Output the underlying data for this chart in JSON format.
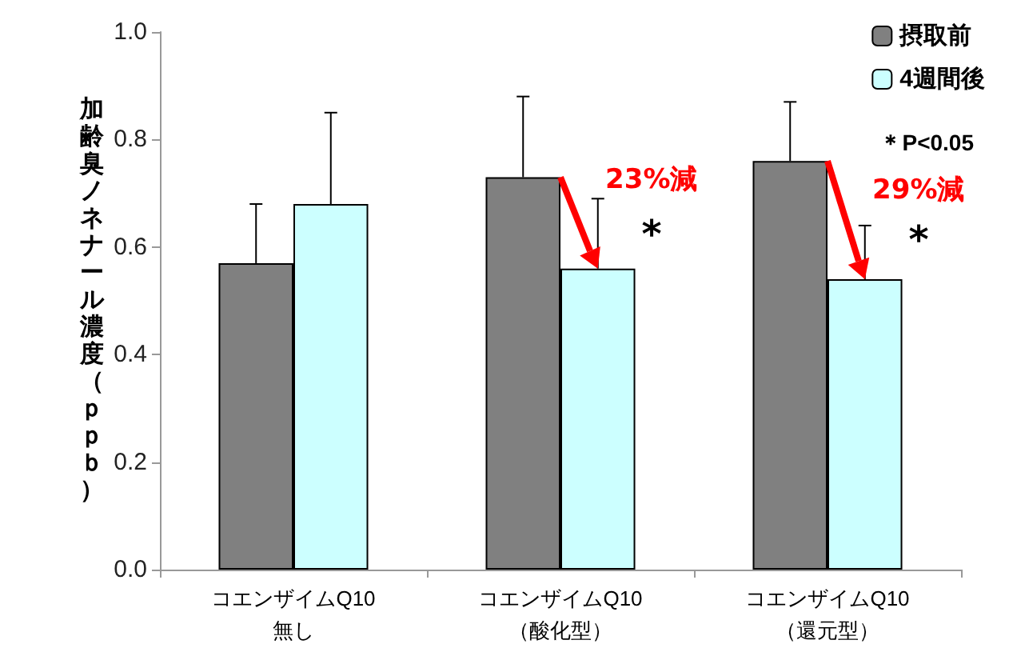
{
  "chart_data": {
    "type": "bar",
    "categories": [
      "コエンザイムQ10\n無し",
      "コエンザイムQ10\n（酸化型）",
      "コエンザイムQ10\n（還元型）"
    ],
    "series": [
      {
        "name": "摂取前",
        "color": "#808080",
        "values": [
          0.57,
          0.73,
          0.76
        ],
        "errors": [
          [
            0.57,
            0.68
          ],
          [
            0.73,
            0.88
          ],
          [
            0.76,
            0.87
          ]
        ]
      },
      {
        "name": "4週間後",
        "color": "#ccffff",
        "values": [
          0.68,
          0.56,
          0.54
        ],
        "errors": [
          [
            0.68,
            0.85
          ],
          [
            0.56,
            0.69
          ],
          [
            0.54,
            0.64
          ]
        ]
      }
    ],
    "ylabel": "加齢臭ノネナール濃度（ｐｐｂ）",
    "ylim": [
      0,
      1
    ],
    "yticks": [
      {
        "value": 0,
        "label": "0.0"
      },
      {
        "value": 0.2,
        "label": "0.2"
      },
      {
        "value": 0.4,
        "label": "0.4"
      },
      {
        "value": 0.6,
        "label": "0.6"
      },
      {
        "value": 0.8,
        "label": "0.8"
      },
      {
        "value": 1,
        "label": "1.0"
      }
    ],
    "grid": false,
    "legend": "top right",
    "annotations": [
      {
        "text": "23%減",
        "x": "コエンザイムQ10\n（酸化型）",
        "y": 0.71
      },
      {
        "text": "29%減",
        "x": "コエンザイムQ10\n（還元型）",
        "y": 0.69
      },
      {
        "text": "*",
        "x": "コエンザイムQ10\n（酸化型）",
        "y": 0.6
      },
      {
        "text": "*",
        "x": "コエンザイムQ10\n（還元型）",
        "y": 0.59
      },
      "＊P<0.05"
    ]
  }
}
